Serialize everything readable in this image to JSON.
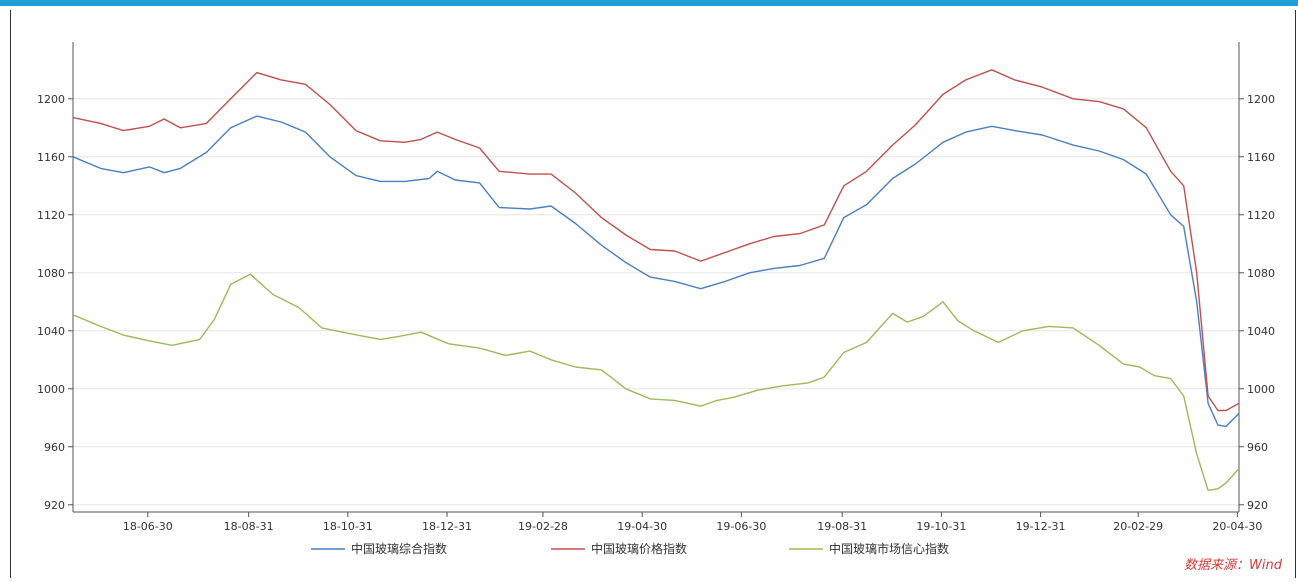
{
  "source_label": "数据来源：Wind",
  "chart_data": {
    "type": "line",
    "x_ticks": [
      "18-06-30",
      "18-08-31",
      "18-10-31",
      "18-12-31",
      "19-02-28",
      "19-04-30",
      "19-06-30",
      "19-08-31",
      "19-10-31",
      "19-12-31",
      "20-02-29",
      "20-04-30"
    ],
    "y_ticks": [
      920,
      960,
      1000,
      1040,
      1080,
      1120,
      1160,
      1200
    ],
    "ylim": [
      915,
      1235
    ],
    "xlim": [
      "2018-05-15",
      "2020-05-01"
    ],
    "grid": "horizontal",
    "legend_position": "bottom",
    "series": [
      {
        "name": "中国玻璃综合指数",
        "color": "#4a7fc1",
        "points": [
          [
            "2018-05-15",
            1160
          ],
          [
            "2018-06-01",
            1152
          ],
          [
            "2018-06-15",
            1149
          ],
          [
            "2018-07-01",
            1153
          ],
          [
            "2018-07-10",
            1149
          ],
          [
            "2018-07-20",
            1152
          ],
          [
            "2018-08-05",
            1163
          ],
          [
            "2018-08-20",
            1180
          ],
          [
            "2018-09-05",
            1188
          ],
          [
            "2018-09-20",
            1184
          ],
          [
            "2018-10-05",
            1177
          ],
          [
            "2018-10-20",
            1160
          ],
          [
            "2018-11-05",
            1147
          ],
          [
            "2018-11-20",
            1143
          ],
          [
            "2018-12-05",
            1143
          ],
          [
            "2018-12-20",
            1145
          ],
          [
            "2018-12-25",
            1150
          ],
          [
            "2019-01-05",
            1144
          ],
          [
            "2019-01-20",
            1142
          ],
          [
            "2019-02-01",
            1125
          ],
          [
            "2019-02-20",
            1124
          ],
          [
            "2019-03-05",
            1126
          ],
          [
            "2019-03-20",
            1114
          ],
          [
            "2019-04-05",
            1099
          ],
          [
            "2019-04-20",
            1087
          ],
          [
            "2019-05-05",
            1077
          ],
          [
            "2019-05-20",
            1074
          ],
          [
            "2019-06-05",
            1069
          ],
          [
            "2019-06-20",
            1074
          ],
          [
            "2019-07-05",
            1080
          ],
          [
            "2019-07-20",
            1083
          ],
          [
            "2019-08-05",
            1085
          ],
          [
            "2019-08-20",
            1090
          ],
          [
            "2019-09-01",
            1118
          ],
          [
            "2019-09-15",
            1127
          ],
          [
            "2019-10-01",
            1145
          ],
          [
            "2019-10-15",
            1155
          ],
          [
            "2019-11-01",
            1170
          ],
          [
            "2019-11-15",
            1177
          ],
          [
            "2019-12-01",
            1181
          ],
          [
            "2019-12-15",
            1178
          ],
          [
            "2020-01-01",
            1175
          ],
          [
            "2020-01-20",
            1168
          ],
          [
            "2020-02-05",
            1164
          ],
          [
            "2020-02-20",
            1158
          ],
          [
            "2020-03-05",
            1148
          ],
          [
            "2020-03-20",
            1120
          ],
          [
            "2020-03-28",
            1112
          ],
          [
            "2020-04-05",
            1060
          ],
          [
            "2020-04-12",
            990
          ],
          [
            "2020-04-18",
            975
          ],
          [
            "2020-04-23",
            974
          ],
          [
            "2020-05-01",
            983
          ]
        ]
      },
      {
        "name": "中国玻璃价格指数",
        "color": "#c0504d",
        "points": [
          [
            "2018-05-15",
            1187
          ],
          [
            "2018-06-01",
            1183
          ],
          [
            "2018-06-15",
            1178
          ],
          [
            "2018-07-01",
            1181
          ],
          [
            "2018-07-10",
            1186
          ],
          [
            "2018-07-20",
            1180
          ],
          [
            "2018-08-05",
            1183
          ],
          [
            "2018-08-20",
            1200
          ],
          [
            "2018-09-05",
            1218
          ],
          [
            "2018-09-20",
            1213
          ],
          [
            "2018-10-05",
            1210
          ],
          [
            "2018-10-20",
            1196
          ],
          [
            "2018-11-05",
            1178
          ],
          [
            "2018-11-20",
            1171
          ],
          [
            "2018-12-05",
            1170
          ],
          [
            "2018-12-15",
            1172
          ],
          [
            "2018-12-25",
            1177
          ],
          [
            "2019-01-05",
            1172
          ],
          [
            "2019-01-20",
            1166
          ],
          [
            "2019-02-01",
            1150
          ],
          [
            "2019-02-20",
            1148
          ],
          [
            "2019-03-05",
            1148
          ],
          [
            "2019-03-20",
            1135
          ],
          [
            "2019-04-05",
            1118
          ],
          [
            "2019-04-20",
            1106
          ],
          [
            "2019-05-05",
            1096
          ],
          [
            "2019-05-20",
            1095
          ],
          [
            "2019-06-05",
            1088
          ],
          [
            "2019-06-20",
            1094
          ],
          [
            "2019-07-05",
            1100
          ],
          [
            "2019-07-20",
            1105
          ],
          [
            "2019-08-05",
            1107
          ],
          [
            "2019-08-20",
            1113
          ],
          [
            "2019-09-01",
            1140
          ],
          [
            "2019-09-15",
            1150
          ],
          [
            "2019-10-01",
            1168
          ],
          [
            "2019-10-15",
            1182
          ],
          [
            "2019-11-01",
            1203
          ],
          [
            "2019-11-15",
            1213
          ],
          [
            "2019-12-01",
            1220
          ],
          [
            "2019-12-15",
            1213
          ],
          [
            "2020-01-01",
            1208
          ],
          [
            "2020-01-20",
            1200
          ],
          [
            "2020-02-05",
            1198
          ],
          [
            "2020-02-20",
            1193
          ],
          [
            "2020-03-05",
            1180
          ],
          [
            "2020-03-20",
            1150
          ],
          [
            "2020-03-28",
            1140
          ],
          [
            "2020-04-05",
            1080
          ],
          [
            "2020-04-12",
            995
          ],
          [
            "2020-04-18",
            985
          ],
          [
            "2020-04-23",
            985
          ],
          [
            "2020-05-01",
            990
          ]
        ]
      },
      {
        "name": "中国玻璃市场信心指数",
        "color": "#9bbb59",
        "points": [
          [
            "2018-05-15",
            1051
          ],
          [
            "2018-06-01",
            1043
          ],
          [
            "2018-06-15",
            1037
          ],
          [
            "2018-07-01",
            1033
          ],
          [
            "2018-07-15",
            1030
          ],
          [
            "2018-08-01",
            1034
          ],
          [
            "2018-08-10",
            1048
          ],
          [
            "2018-08-20",
            1072
          ],
          [
            "2018-09-01",
            1079
          ],
          [
            "2018-09-15",
            1065
          ],
          [
            "2018-10-01",
            1056
          ],
          [
            "2018-10-15",
            1042
          ],
          [
            "2018-11-01",
            1038
          ],
          [
            "2018-11-20",
            1034
          ],
          [
            "2018-12-01",
            1036
          ],
          [
            "2018-12-15",
            1039
          ],
          [
            "2019-01-01",
            1031
          ],
          [
            "2019-01-20",
            1028
          ],
          [
            "2019-02-05",
            1023
          ],
          [
            "2019-02-20",
            1026
          ],
          [
            "2019-03-05",
            1020
          ],
          [
            "2019-03-20",
            1015
          ],
          [
            "2019-04-05",
            1013
          ],
          [
            "2019-04-20",
            1000
          ],
          [
            "2019-05-05",
            993
          ],
          [
            "2019-05-20",
            992
          ],
          [
            "2019-06-05",
            988
          ],
          [
            "2019-06-15",
            992
          ],
          [
            "2019-06-25",
            994
          ],
          [
            "2019-07-10",
            999
          ],
          [
            "2019-07-25",
            1002
          ],
          [
            "2019-08-10",
            1004
          ],
          [
            "2019-08-20",
            1008
          ],
          [
            "2019-09-01",
            1025
          ],
          [
            "2019-09-15",
            1032
          ],
          [
            "2019-10-01",
            1052
          ],
          [
            "2019-10-10",
            1046
          ],
          [
            "2019-10-20",
            1050
          ],
          [
            "2019-11-01",
            1060
          ],
          [
            "2019-11-10",
            1047
          ],
          [
            "2019-11-20",
            1040
          ],
          [
            "2019-12-05",
            1032
          ],
          [
            "2019-12-20",
            1040
          ],
          [
            "2020-01-05",
            1043
          ],
          [
            "2020-01-20",
            1042
          ],
          [
            "2020-02-05",
            1030
          ],
          [
            "2020-02-20",
            1017
          ],
          [
            "2020-03-01",
            1015
          ],
          [
            "2020-03-10",
            1009
          ],
          [
            "2020-03-20",
            1007
          ],
          [
            "2020-03-28",
            995
          ],
          [
            "2020-04-05",
            955
          ],
          [
            "2020-04-12",
            930
          ],
          [
            "2020-04-18",
            931
          ],
          [
            "2020-04-23",
            935
          ],
          [
            "2020-05-01",
            945
          ]
        ]
      }
    ]
  }
}
